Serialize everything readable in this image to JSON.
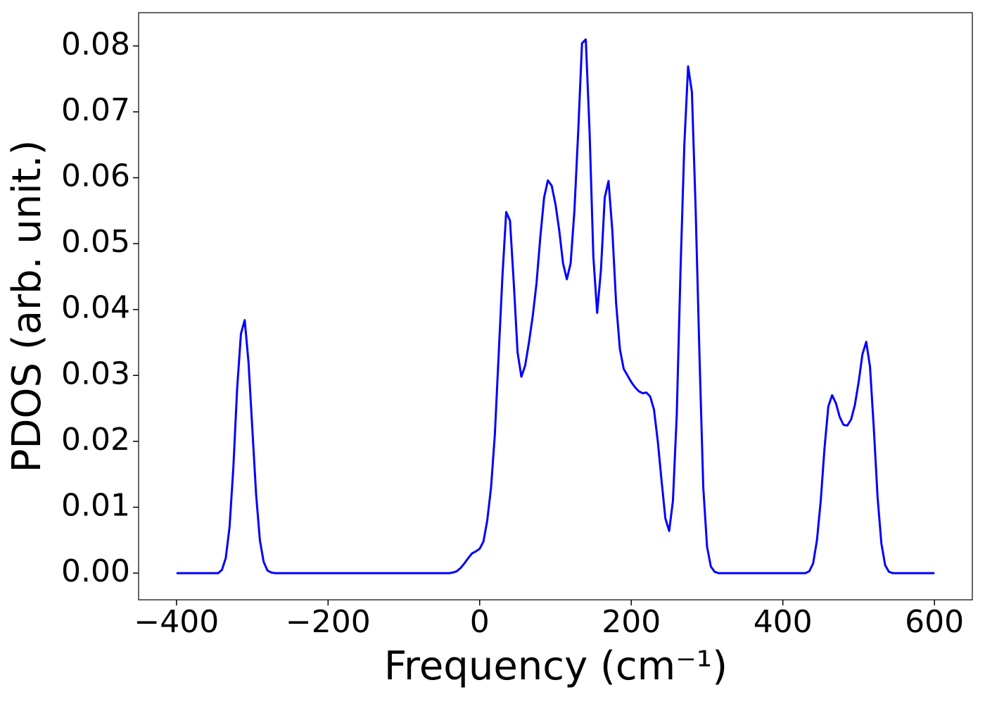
{
  "chart_data": {
    "type": "line",
    "xlabel": "Frequency (cm⁻¹)",
    "ylabel": "PDOS (arb. unit.)",
    "xlim": [
      -450,
      650
    ],
    "ylim": [
      -0.00405,
      0.08505
    ],
    "xticks": [
      {
        "value": -400,
        "label": "−400"
      },
      {
        "value": -200,
        "label": "−200"
      },
      0,
      200,
      400,
      600
    ],
    "yticks": [
      {
        "value": 0,
        "label": "0.00"
      },
      {
        "value": 0.01,
        "label": "0.01"
      },
      {
        "value": 0.02,
        "label": "0.02"
      },
      {
        "value": 0.03,
        "label": "0.03"
      },
      {
        "value": 0.04,
        "label": "0.04"
      },
      {
        "value": 0.05,
        "label": "0.05"
      },
      {
        "value": 0.06,
        "label": "0.06"
      },
      {
        "value": 0.07,
        "label": "0.07"
      },
      {
        "value": 0.08,
        "label": "0.08"
      }
    ],
    "grid": false,
    "x": [
      -400,
      -345,
      -340,
      -335,
      -330,
      -325,
      -320,
      -315,
      -310,
      -305,
      -300,
      -295,
      -290,
      -285,
      -280,
      -275,
      -270,
      -40,
      -35,
      -30,
      -25,
      -20,
      -15,
      -10,
      -5,
      0,
      5,
      10,
      15,
      20,
      25,
      30,
      35,
      40,
      45,
      50,
      55,
      60,
      65,
      70,
      75,
      80,
      85,
      90,
      95,
      100,
      105,
      110,
      115,
      120,
      125,
      130,
      135,
      140,
      145,
      150,
      155,
      160,
      165,
      170,
      175,
      180,
      185,
      190,
      195,
      200,
      205,
      210,
      215,
      220,
      225,
      230,
      235,
      240,
      245,
      250,
      255,
      260,
      265,
      270,
      275,
      280,
      285,
      290,
      295,
      300,
      305,
      310,
      315,
      430,
      435,
      440,
      445,
      450,
      455,
      460,
      465,
      470,
      475,
      480,
      485,
      490,
      495,
      500,
      505,
      510,
      515,
      520,
      525,
      530,
      535,
      540,
      545,
      600
    ],
    "series": [
      {
        "color": "#0000ff",
        "values": [
          0,
          0,
          0.0005,
          0.0023,
          0.007,
          0.016,
          0.028,
          0.0363,
          0.0384,
          0.032,
          0.022,
          0.012,
          0.005,
          0.0017,
          0.0004,
          0.0001,
          0,
          0,
          0.0001,
          0.0003,
          0.0008,
          0.0015,
          0.0023,
          0.003,
          0.0033,
          0.0037,
          0.0048,
          0.008,
          0.013,
          0.021,
          0.033,
          0.045,
          0.0548,
          0.0535,
          0.044,
          0.0335,
          0.0298,
          0.0315,
          0.035,
          0.039,
          0.044,
          0.051,
          0.057,
          0.0596,
          0.0588,
          0.056,
          0.052,
          0.047,
          0.0446,
          0.047,
          0.055,
          0.067,
          0.0804,
          0.081,
          0.067,
          0.048,
          0.0395,
          0.046,
          0.057,
          0.0595,
          0.052,
          0.041,
          0.034,
          0.031,
          0.03,
          0.029,
          0.0282,
          0.0276,
          0.0273,
          0.0274,
          0.0268,
          0.0248,
          0.02,
          0.014,
          0.0083,
          0.0064,
          0.011,
          0.024,
          0.046,
          0.065,
          0.0769,
          0.073,
          0.055,
          0.033,
          0.013,
          0.004,
          0.001,
          0.0002,
          0,
          0,
          0.0003,
          0.0015,
          0.005,
          0.011,
          0.019,
          0.0253,
          0.027,
          0.0258,
          0.0237,
          0.0225,
          0.0224,
          0.0233,
          0.0255,
          0.029,
          0.0332,
          0.0351,
          0.0313,
          0.022,
          0.0115,
          0.0045,
          0.0012,
          0.0002,
          0,
          0
        ]
      }
    ]
  }
}
